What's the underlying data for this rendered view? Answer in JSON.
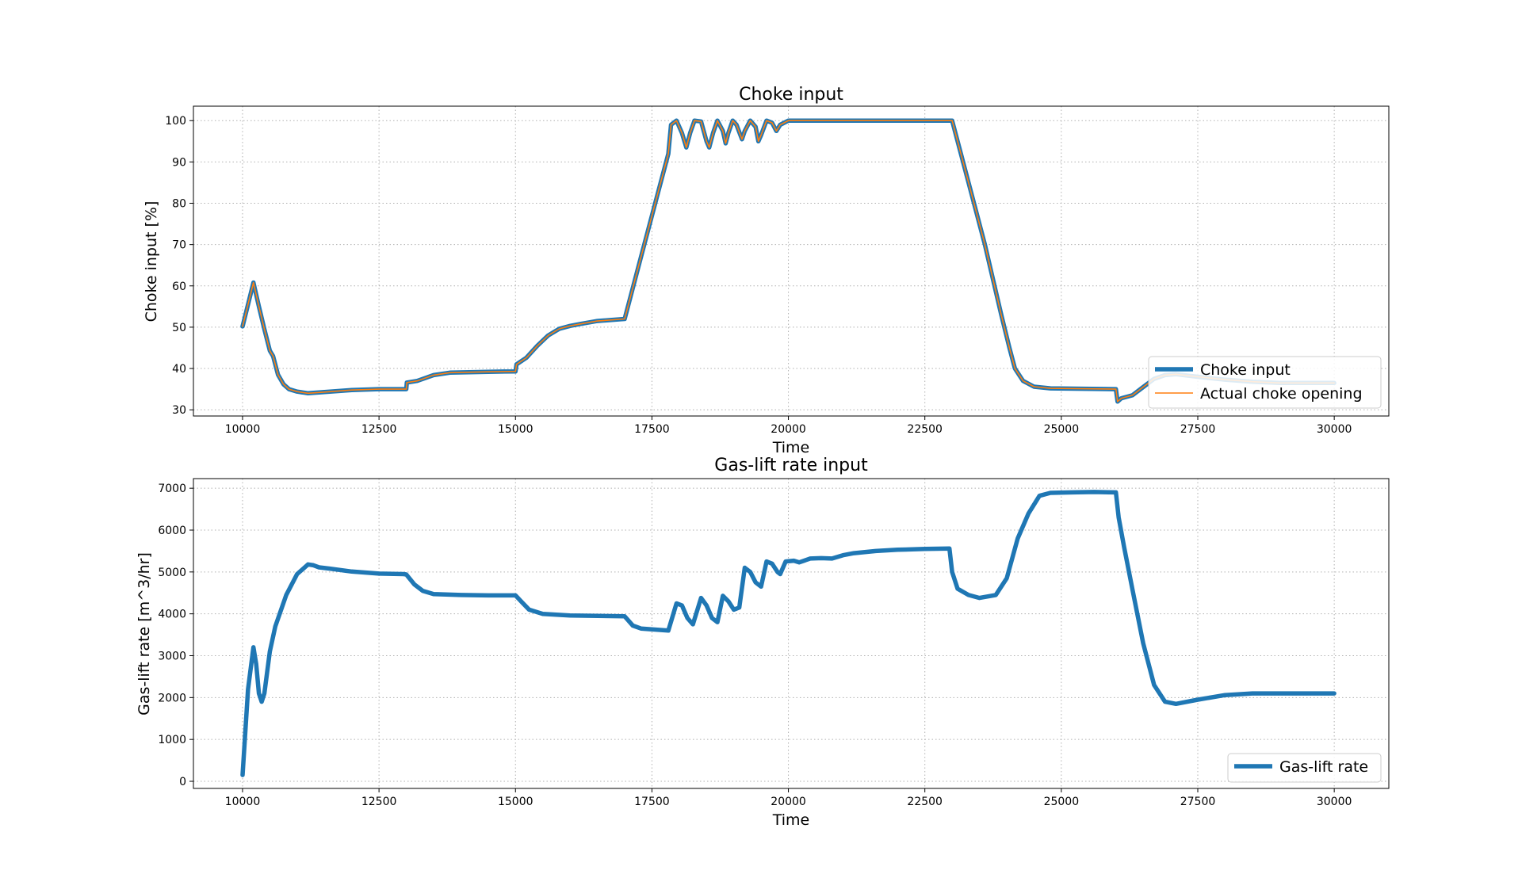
{
  "chart_data": [
    {
      "type": "line",
      "title": "Choke input",
      "xlabel": "Time",
      "ylabel": "Choke input [%]",
      "xlim": [
        9100,
        31000
      ],
      "ylim": [
        28.5,
        103.5
      ],
      "xticks": [
        10000,
        12500,
        15000,
        17500,
        20000,
        22500,
        25000,
        27500,
        30000
      ],
      "yticks": [
        30,
        40,
        50,
        60,
        70,
        80,
        90,
        100
      ],
      "grid": true,
      "legend_position": "lower-right",
      "series": [
        {
          "name": "Choke input",
          "color": "#1f77b4",
          "points": [
            [
              10000,
              50.2
            ],
            [
              10100,
              55.5
            ],
            [
              10200,
              60.8
            ],
            [
              10300,
              55.0
            ],
            [
              10400,
              49.5
            ],
            [
              10500,
              44.3
            ],
            [
              10560,
              43.0
            ],
            [
              10650,
              38.5
            ],
            [
              10750,
              36.2
            ],
            [
              10850,
              35.0
            ],
            [
              11000,
              34.4
            ],
            [
              11200,
              34.0
            ],
            [
              11500,
              34.3
            ],
            [
              12000,
              34.8
            ],
            [
              12500,
              35.0
            ],
            [
              13000,
              35.0
            ],
            [
              13010,
              36.6
            ],
            [
              13200,
              37.0
            ],
            [
              13500,
              38.4
            ],
            [
              13800,
              39.0
            ],
            [
              14500,
              39.2
            ],
            [
              15000,
              39.3
            ],
            [
              15020,
              41.0
            ],
            [
              15200,
              42.6
            ],
            [
              15400,
              45.5
            ],
            [
              15600,
              48.0
            ],
            [
              15800,
              49.6
            ],
            [
              16000,
              50.3
            ],
            [
              16200,
              50.8
            ],
            [
              16500,
              51.5
            ],
            [
              17000,
              52.0
            ],
            [
              17300,
              67.0
            ],
            [
              17600,
              82.0
            ],
            [
              17800,
              92.0
            ],
            [
              17850,
              99.0
            ],
            [
              17950,
              100.0
            ],
            [
              18050,
              97.0
            ],
            [
              18130,
              93.5
            ],
            [
              18200,
              97.0
            ],
            [
              18280,
              100.0
            ],
            [
              18400,
              99.8
            ],
            [
              18500,
              95.0
            ],
            [
              18550,
              93.5
            ],
            [
              18620,
              97.0
            ],
            [
              18700,
              100.0
            ],
            [
              18800,
              97.5
            ],
            [
              18850,
              94.5
            ],
            [
              18900,
              97.0
            ],
            [
              18980,
              100.0
            ],
            [
              19050,
              99.0
            ],
            [
              19150,
              95.5
            ],
            [
              19200,
              97.5
            ],
            [
              19300,
              100.0
            ],
            [
              19400,
              98.5
            ],
            [
              19450,
              95.0
            ],
            [
              19500,
              96.5
            ],
            [
              19600,
              100.0
            ],
            [
              19700,
              99.5
            ],
            [
              19780,
              97.5
            ],
            [
              19850,
              99.0
            ],
            [
              20000,
              100.0
            ],
            [
              20300,
              100.0
            ],
            [
              23000,
              100.0
            ],
            [
              23300,
              85.0
            ],
            [
              23600,
              70.0
            ],
            [
              23900,
              53.0
            ],
            [
              24050,
              45.0
            ],
            [
              24150,
              40.0
            ],
            [
              24300,
              37.0
            ],
            [
              24500,
              35.6
            ],
            [
              24800,
              35.2
            ],
            [
              26000,
              35.0
            ],
            [
              26030,
              32.0
            ],
            [
              26100,
              32.8
            ],
            [
              26300,
              33.5
            ],
            [
              26500,
              35.5
            ],
            [
              26700,
              37.5
            ],
            [
              26900,
              38.4
            ],
            [
              27100,
              38.6
            ],
            [
              27500,
              38.0
            ],
            [
              28000,
              37.3
            ],
            [
              28500,
              36.8
            ],
            [
              29000,
              36.5
            ],
            [
              30000,
              36.5
            ]
          ]
        },
        {
          "name": "Actual choke opening",
          "color": "#ff7f0e",
          "points": [
            [
              10000,
              50.2
            ],
            [
              10100,
              55.5
            ],
            [
              10200,
              60.8
            ],
            [
              10300,
              55.0
            ],
            [
              10400,
              49.5
            ],
            [
              10500,
              44.3
            ],
            [
              10560,
              43.0
            ],
            [
              10650,
              38.5
            ],
            [
              10750,
              36.2
            ],
            [
              10850,
              35.0
            ],
            [
              11000,
              34.4
            ],
            [
              11200,
              34.0
            ],
            [
              11500,
              34.3
            ],
            [
              12000,
              34.8
            ],
            [
              12500,
              35.0
            ],
            [
              13000,
              35.0
            ],
            [
              13010,
              36.6
            ],
            [
              13200,
              37.0
            ],
            [
              13500,
              38.4
            ],
            [
              13800,
              39.0
            ],
            [
              14500,
              39.2
            ],
            [
              15000,
              39.3
            ],
            [
              15020,
              41.0
            ],
            [
              15200,
              42.6
            ],
            [
              15400,
              45.5
            ],
            [
              15600,
              48.0
            ],
            [
              15800,
              49.6
            ],
            [
              16000,
              50.3
            ],
            [
              16200,
              50.8
            ],
            [
              16500,
              51.5
            ],
            [
              17000,
              52.0
            ],
            [
              17300,
              67.0
            ],
            [
              17600,
              82.0
            ],
            [
              17800,
              92.0
            ],
            [
              17850,
              99.0
            ],
            [
              17950,
              100.0
            ],
            [
              18050,
              97.0
            ],
            [
              18130,
              93.5
            ],
            [
              18200,
              97.0
            ],
            [
              18280,
              100.0
            ],
            [
              18400,
              99.8
            ],
            [
              18500,
              95.0
            ],
            [
              18550,
              93.5
            ],
            [
              18620,
              97.0
            ],
            [
              18700,
              100.0
            ],
            [
              18800,
              97.5
            ],
            [
              18850,
              94.5
            ],
            [
              18900,
              97.0
            ],
            [
              18980,
              100.0
            ],
            [
              19050,
              99.0
            ],
            [
              19150,
              95.5
            ],
            [
              19200,
              97.5
            ],
            [
              19300,
              100.0
            ],
            [
              19400,
              98.5
            ],
            [
              19450,
              95.0
            ],
            [
              19500,
              96.5
            ],
            [
              19600,
              100.0
            ],
            [
              19700,
              99.5
            ],
            [
              19780,
              97.5
            ],
            [
              19850,
              99.0
            ],
            [
              20000,
              100.0
            ],
            [
              20300,
              100.0
            ],
            [
              23000,
              100.0
            ],
            [
              23300,
              85.0
            ],
            [
              23600,
              70.0
            ],
            [
              23900,
              53.0
            ],
            [
              24050,
              45.0
            ],
            [
              24150,
              40.0
            ],
            [
              24300,
              37.0
            ],
            [
              24500,
              35.6
            ],
            [
              24800,
              35.2
            ],
            [
              26000,
              35.0
            ],
            [
              26030,
              32.0
            ],
            [
              26100,
              32.8
            ],
            [
              26300,
              33.5
            ],
            [
              26500,
              35.5
            ],
            [
              26700,
              37.5
            ],
            [
              26900,
              38.4
            ],
            [
              27100,
              38.6
            ],
            [
              27500,
              38.0
            ],
            [
              28000,
              37.3
            ],
            [
              28500,
              36.8
            ],
            [
              29000,
              36.5
            ],
            [
              30000,
              36.5
            ]
          ]
        }
      ]
    },
    {
      "type": "line",
      "title": "Gas-lift rate input",
      "xlabel": "Time",
      "ylabel": "Gas-lift rate [m^3/hr]",
      "xlim": [
        9100,
        31000
      ],
      "ylim": [
        -170,
        7230
      ],
      "xticks": [
        10000,
        12500,
        15000,
        17500,
        20000,
        22500,
        25000,
        27500,
        30000
      ],
      "yticks": [
        0,
        1000,
        2000,
        3000,
        4000,
        5000,
        6000,
        7000
      ],
      "grid": true,
      "legend_position": "lower-right",
      "series": [
        {
          "name": "Gas-lift rate",
          "color": "#1f77b4",
          "points": [
            [
              10000,
              150
            ],
            [
              10100,
              2200
            ],
            [
              10200,
              3200
            ],
            [
              10250,
              2800
            ],
            [
              10300,
              2100
            ],
            [
              10350,
              1900
            ],
            [
              10400,
              2100
            ],
            [
              10500,
              3100
            ],
            [
              10600,
              3700
            ],
            [
              10800,
              4450
            ],
            [
              11000,
              4950
            ],
            [
              11200,
              5180
            ],
            [
              11300,
              5160
            ],
            [
              11400,
              5110
            ],
            [
              11600,
              5080
            ],
            [
              12000,
              5010
            ],
            [
              12500,
              4960
            ],
            [
              12950,
              4950
            ],
            [
              13000,
              4940
            ],
            [
              13150,
              4700
            ],
            [
              13300,
              4550
            ],
            [
              13500,
              4470
            ],
            [
              14000,
              4450
            ],
            [
              14500,
              4440
            ],
            [
              15000,
              4440
            ],
            [
              15100,
              4300
            ],
            [
              15250,
              4100
            ],
            [
              15500,
              4000
            ],
            [
              16000,
              3960
            ],
            [
              17000,
              3940
            ],
            [
              17150,
              3720
            ],
            [
              17300,
              3650
            ],
            [
              17600,
              3620
            ],
            [
              17800,
              3600
            ],
            [
              17950,
              4250
            ],
            [
              18050,
              4200
            ],
            [
              18150,
              3900
            ],
            [
              18250,
              3750
            ],
            [
              18400,
              4380
            ],
            [
              18500,
              4200
            ],
            [
              18600,
              3900
            ],
            [
              18700,
              3800
            ],
            [
              18800,
              4430
            ],
            [
              18900,
              4300
            ],
            [
              19000,
              4100
            ],
            [
              19100,
              4150
            ],
            [
              19200,
              5100
            ],
            [
              19300,
              5000
            ],
            [
              19400,
              4750
            ],
            [
              19500,
              4650
            ],
            [
              19600,
              5250
            ],
            [
              19700,
              5200
            ],
            [
              19800,
              5000
            ],
            [
              19850,
              4950
            ],
            [
              19950,
              5250
            ],
            [
              20100,
              5270
            ],
            [
              20200,
              5230
            ],
            [
              20400,
              5320
            ],
            [
              20600,
              5330
            ],
            [
              20800,
              5320
            ],
            [
              21000,
              5400
            ],
            [
              21200,
              5450
            ],
            [
              21600,
              5500
            ],
            [
              22000,
              5530
            ],
            [
              22500,
              5550
            ],
            [
              22950,
              5560
            ],
            [
              23000,
              5000
            ],
            [
              23100,
              4600
            ],
            [
              23300,
              4450
            ],
            [
              23500,
              4380
            ],
            [
              23800,
              4450
            ],
            [
              24000,
              4850
            ],
            [
              24200,
              5800
            ],
            [
              24400,
              6400
            ],
            [
              24600,
              6820
            ],
            [
              24800,
              6890
            ],
            [
              25200,
              6900
            ],
            [
              25600,
              6910
            ],
            [
              26000,
              6900
            ],
            [
              26050,
              6300
            ],
            [
              26150,
              5600
            ],
            [
              26300,
              4600
            ],
            [
              26500,
              3300
            ],
            [
              26700,
              2300
            ],
            [
              26900,
              1900
            ],
            [
              27100,
              1850
            ],
            [
              27500,
              1950
            ],
            [
              28000,
              2060
            ],
            [
              28500,
              2100
            ],
            [
              29000,
              2100
            ],
            [
              30000,
              2100
            ]
          ]
        }
      ]
    }
  ]
}
